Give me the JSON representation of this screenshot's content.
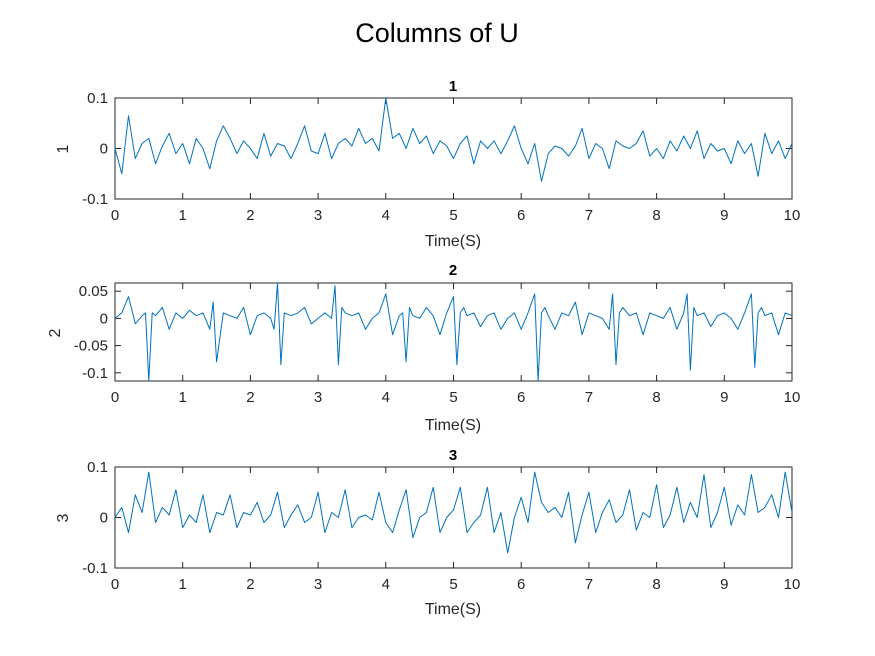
{
  "figure": {
    "title": "Columns of U",
    "line_color": "#0072BD"
  },
  "chart_data": [
    {
      "type": "line",
      "title": "1",
      "xlabel": "Time(S)",
      "ylabel": "1",
      "xlim": [
        0,
        10
      ],
      "ylim": [
        -0.1,
        0.1
      ],
      "xticks": [
        0,
        1,
        2,
        3,
        4,
        5,
        6,
        7,
        8,
        9,
        10
      ],
      "xticklabels": [
        "0",
        "1",
        "2",
        "3",
        "4",
        "5",
        "6",
        "7",
        "8",
        "9",
        "10"
      ],
      "yticks": [
        -0.1,
        0,
        0.1
      ],
      "yticklabels": [
        "-0.1",
        "0",
        "0.1"
      ],
      "grid": false,
      "series": [
        {
          "x": [
            0,
            0.1,
            0.2,
            0.3,
            0.4,
            0.5,
            0.6,
            0.7,
            0.8,
            0.9,
            1.0,
            1.1,
            1.2,
            1.3,
            1.4,
            1.5,
            1.6,
            1.7,
            1.8,
            1.9,
            2.0,
            2.1,
            2.2,
            2.3,
            2.4,
            2.5,
            2.6,
            2.7,
            2.8,
            2.9,
            3.0,
            3.1,
            3.2,
            3.3,
            3.4,
            3.5,
            3.6,
            3.7,
            3.8,
            3.9,
            4.0,
            4.1,
            4.2,
            4.3,
            4.4,
            4.5,
            4.6,
            4.7,
            4.8,
            4.9,
            5.0,
            5.1,
            5.2,
            5.3,
            5.4,
            5.5,
            5.6,
            5.7,
            5.8,
            5.9,
            6.0,
            6.1,
            6.2,
            6.3,
            6.4,
            6.5,
            6.6,
            6.7,
            6.8,
            6.9,
            7.0,
            7.1,
            7.2,
            7.3,
            7.4,
            7.5,
            7.6,
            7.7,
            7.8,
            7.9,
            8.0,
            8.1,
            8.2,
            8.3,
            8.4,
            8.5,
            8.6,
            8.7,
            8.8,
            8.9,
            9.0,
            9.1,
            9.2,
            9.3,
            9.4,
            9.5,
            9.6,
            9.7,
            9.8,
            9.9,
            10.0
          ],
          "y": [
            0,
            -0.05,
            0.065,
            -0.02,
            0.01,
            0.02,
            -0.03,
            0.005,
            0.03,
            -0.01,
            0.01,
            -0.03,
            0.02,
            0.0,
            -0.04,
            0.015,
            0.045,
            0.02,
            -0.01,
            0.015,
            0.0,
            -0.02,
            0.03,
            -0.015,
            0.01,
            0.005,
            -0.02,
            0.01,
            0.045,
            -0.005,
            -0.01,
            0.03,
            -0.02,
            0.01,
            0.02,
            0.005,
            0.04,
            0.01,
            0.02,
            -0.005,
            0.1,
            0.02,
            0.03,
            0.0,
            0.04,
            0.01,
            0.025,
            -0.01,
            0.015,
            0.005,
            -0.02,
            0.01,
            0.025,
            -0.03,
            0.015,
            0.0,
            0.015,
            -0.01,
            0.015,
            0.045,
            0.0,
            -0.03,
            0.01,
            -0.065,
            -0.01,
            0.005,
            0.0,
            -0.015,
            0.005,
            0.04,
            -0.02,
            0.01,
            0.0,
            -0.04,
            0.015,
            0.005,
            0.0,
            0.01,
            0.035,
            -0.015,
            0.0,
            -0.02,
            0.015,
            -0.005,
            0.025,
            0.0,
            0.035,
            -0.02,
            0.01,
            -0.005,
            0.0,
            -0.03,
            0.015,
            -0.01,
            0.01,
            -0.055,
            0.03,
            -0.01,
            0.015,
            -0.02,
            0.01
          ]
        }
      ]
    },
    {
      "type": "line",
      "title": "2",
      "xlabel": "Time(S)",
      "ylabel": "2",
      "xlim": [
        0,
        10
      ],
      "ylim": [
        -0.115,
        0.065
      ],
      "xticks": [
        0,
        1,
        2,
        3,
        4,
        5,
        6,
        7,
        8,
        9,
        10
      ],
      "xticklabels": [
        "0",
        "1",
        "2",
        "3",
        "4",
        "5",
        "6",
        "7",
        "8",
        "9",
        "10"
      ],
      "yticks": [
        -0.1,
        -0.05,
        0,
        0.05
      ],
      "yticklabels": [
        "-0.1",
        "-0.05",
        "0",
        "0.05"
      ],
      "grid": false,
      "series": [
        {
          "x": [
            0,
            0.1,
            0.2,
            0.3,
            0.4,
            0.45,
            0.5,
            0.55,
            0.6,
            0.7,
            0.8,
            0.9,
            1.0,
            1.1,
            1.2,
            1.3,
            1.4,
            1.45,
            1.5,
            1.6,
            1.7,
            1.8,
            1.9,
            2.0,
            2.1,
            2.2,
            2.3,
            2.35,
            2.4,
            2.45,
            2.5,
            2.6,
            2.7,
            2.8,
            2.9,
            3.0,
            3.1,
            3.2,
            3.25,
            3.3,
            3.35,
            3.4,
            3.5,
            3.6,
            3.7,
            3.8,
            3.9,
            4.0,
            4.1,
            4.2,
            4.25,
            4.3,
            4.35,
            4.4,
            4.5,
            4.6,
            4.7,
            4.8,
            4.9,
            5.0,
            5.05,
            5.1,
            5.15,
            5.2,
            5.3,
            5.4,
            5.5,
            5.6,
            5.7,
            5.8,
            5.9,
            6.0,
            6.1,
            6.2,
            6.25,
            6.3,
            6.35,
            6.4,
            6.5,
            6.6,
            6.7,
            6.8,
            6.9,
            7.0,
            7.1,
            7.2,
            7.3,
            7.35,
            7.4,
            7.45,
            7.5,
            7.6,
            7.7,
            7.8,
            7.9,
            8.0,
            8.1,
            8.2,
            8.3,
            8.4,
            8.45,
            8.5,
            8.55,
            8.6,
            8.7,
            8.8,
            8.9,
            9.0,
            9.1,
            9.2,
            9.3,
            9.4,
            9.45,
            9.5,
            9.55,
            9.6,
            9.7,
            9.8,
            9.9,
            10.0
          ],
          "y": [
            0,
            0.01,
            0.04,
            -0.01,
            0.005,
            0.01,
            -0.115,
            0.01,
            0.005,
            0.02,
            -0.02,
            0.01,
            0.0,
            0.015,
            0.005,
            0.01,
            -0.02,
            0.03,
            -0.08,
            0.01,
            0.005,
            0.0,
            0.02,
            -0.03,
            0.005,
            0.01,
            0.0,
            -0.02,
            0.065,
            -0.085,
            0.01,
            0.005,
            0.01,
            0.02,
            -0.01,
            0.0,
            0.01,
            0.0,
            0.06,
            -0.085,
            0.02,
            0.01,
            0.005,
            0.01,
            -0.02,
            0.0,
            0.01,
            0.045,
            -0.03,
            0.005,
            0.01,
            -0.08,
            0.02,
            0.005,
            0.0,
            0.02,
            0.005,
            -0.03,
            0.01,
            0.04,
            -0.085,
            0.01,
            0.02,
            0.005,
            0.01,
            -0.015,
            0.005,
            0.01,
            -0.02,
            0.0,
            0.01,
            -0.02,
            0.01,
            0.045,
            -0.115,
            0.01,
            0.02,
            0.005,
            -0.02,
            0.01,
            0.005,
            0.03,
            -0.03,
            0.01,
            0.005,
            0.0,
            -0.02,
            0.045,
            -0.085,
            0.01,
            0.02,
            0.005,
            0.01,
            -0.03,
            0.01,
            0.005,
            0.0,
            0.02,
            -0.02,
            0.01,
            0.045,
            -0.095,
            0.02,
            0.005,
            0.01,
            -0.015,
            0.005,
            0.01,
            0.0,
            -0.02,
            0.01,
            0.045,
            -0.09,
            0.01,
            0.02,
            0.005,
            0.01,
            -0.03,
            0.01,
            0.005
          ]
        }
      ]
    },
    {
      "type": "line",
      "title": "3",
      "xlabel": "Time(S)",
      "ylabel": "3",
      "xlim": [
        0,
        10
      ],
      "ylim": [
        -0.1,
        0.1
      ],
      "xticks": [
        0,
        1,
        2,
        3,
        4,
        5,
        6,
        7,
        8,
        9,
        10
      ],
      "xticklabels": [
        "0",
        "1",
        "2",
        "3",
        "4",
        "5",
        "6",
        "7",
        "8",
        "9",
        "10"
      ],
      "yticks": [
        -0.1,
        0,
        0.1
      ],
      "yticklabels": [
        "-0.1",
        "0",
        "0.1"
      ],
      "grid": false,
      "series": [
        {
          "x": [
            0,
            0.1,
            0.2,
            0.3,
            0.4,
            0.5,
            0.6,
            0.7,
            0.8,
            0.9,
            1.0,
            1.1,
            1.2,
            1.3,
            1.4,
            1.5,
            1.6,
            1.7,
            1.8,
            1.9,
            2.0,
            2.1,
            2.2,
            2.3,
            2.4,
            2.5,
            2.6,
            2.7,
            2.8,
            2.9,
            3.0,
            3.1,
            3.2,
            3.3,
            3.4,
            3.5,
            3.6,
            3.7,
            3.8,
            3.9,
            4.0,
            4.1,
            4.2,
            4.3,
            4.4,
            4.5,
            4.6,
            4.7,
            4.8,
            4.9,
            5.0,
            5.1,
            5.2,
            5.3,
            5.4,
            5.5,
            5.6,
            5.7,
            5.8,
            5.9,
            6.0,
            6.1,
            6.2,
            6.3,
            6.4,
            6.5,
            6.6,
            6.7,
            6.8,
            6.9,
            7.0,
            7.1,
            7.2,
            7.3,
            7.4,
            7.5,
            7.6,
            7.7,
            7.8,
            7.9,
            8.0,
            8.1,
            8.2,
            8.3,
            8.4,
            8.5,
            8.6,
            8.7,
            8.8,
            8.9,
            9.0,
            9.1,
            9.2,
            9.3,
            9.4,
            9.5,
            9.6,
            9.7,
            9.8,
            9.9,
            10.0
          ],
          "y": [
            0,
            0.02,
            -0.03,
            0.045,
            0.01,
            0.09,
            -0.01,
            0.02,
            0.005,
            0.055,
            -0.02,
            0.005,
            -0.01,
            0.045,
            -0.03,
            0.01,
            0.005,
            0.045,
            -0.02,
            0.01,
            0.005,
            0.03,
            -0.01,
            0.005,
            0.05,
            -0.02,
            0.005,
            0.025,
            -0.01,
            0.0,
            0.05,
            -0.03,
            0.01,
            0.0,
            0.055,
            -0.02,
            0.0,
            0.005,
            -0.005,
            0.05,
            -0.01,
            -0.03,
            0.015,
            0.055,
            -0.04,
            0.0,
            0.01,
            0.06,
            -0.03,
            0.0,
            0.015,
            0.06,
            -0.03,
            -0.01,
            0.005,
            0.06,
            -0.03,
            0.01,
            -0.07,
            0.0,
            0.04,
            -0.01,
            0.09,
            0.03,
            0.01,
            0.02,
            0.0,
            0.05,
            -0.05,
            0.005,
            0.05,
            -0.03,
            0.01,
            0.035,
            -0.01,
            0.005,
            0.055,
            -0.025,
            0.01,
            0.0,
            0.065,
            -0.02,
            0.005,
            0.06,
            -0.01,
            0.03,
            0.0,
            0.085,
            -0.02,
            0.01,
            0.06,
            -0.015,
            0.025,
            0.005,
            0.085,
            0.01,
            0.02,
            0.045,
            0.0,
            0.09,
            0.01
          ]
        }
      ]
    }
  ]
}
